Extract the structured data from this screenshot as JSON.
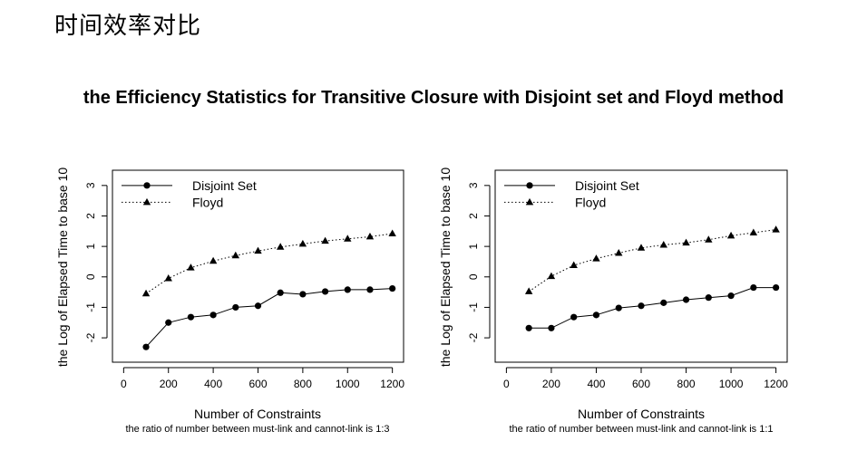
{
  "slide": {
    "title": "时间效率对比"
  },
  "figure": {
    "title": "the Efficiency Statistics for Transitive Closure with Disjoint set and Floyd method"
  },
  "chart_data": [
    {
      "type": "line",
      "xlabel": "Number of Constraints",
      "subtitle": "the ratio of number between must-link and cannot-link is 1:3",
      "ylabel": "the Log of Elapsed Time to base 10",
      "xlim": [
        -50,
        1250
      ],
      "ylim": [
        -2.8,
        3.5
      ],
      "xticks": [
        0,
        200,
        400,
        600,
        800,
        1000,
        1200
      ],
      "yticks": [
        -2,
        -1,
        0,
        1,
        2,
        3
      ],
      "legend_position": "top-left",
      "grid": false,
      "x": [
        100,
        200,
        300,
        400,
        500,
        600,
        700,
        800,
        900,
        1000,
        1100,
        1200
      ],
      "series": [
        {
          "name": "Disjoint Set",
          "line": "solid",
          "marker": "circle",
          "values": [
            -2.3,
            -1.5,
            -1.32,
            -1.25,
            -1.0,
            -0.95,
            -0.52,
            -0.57,
            -0.48,
            -0.42,
            -0.42,
            -0.38
          ]
        },
        {
          "name": "Floyd",
          "line": "dotted",
          "marker": "triangle",
          "values": [
            -0.55,
            -0.05,
            0.3,
            0.52,
            0.7,
            0.85,
            0.98,
            1.08,
            1.18,
            1.25,
            1.32,
            1.42
          ]
        }
      ]
    },
    {
      "type": "line",
      "xlabel": "Number of Constraints",
      "subtitle": "the ratio of number between must-link and cannot-link is 1:1",
      "ylabel": "the Log of Elapsed Time to base 10",
      "xlim": [
        -50,
        1250
      ],
      "ylim": [
        -2.8,
        3.5
      ],
      "xticks": [
        0,
        200,
        400,
        600,
        800,
        1000,
        1200
      ],
      "yticks": [
        -2,
        -1,
        0,
        1,
        2,
        3
      ],
      "legend_position": "top-left",
      "grid": false,
      "x": [
        100,
        200,
        300,
        400,
        500,
        600,
        700,
        800,
        900,
        1000,
        1100,
        1200
      ],
      "series": [
        {
          "name": "Disjoint Set",
          "line": "solid",
          "marker": "circle",
          "values": [
            -1.68,
            -1.68,
            -1.32,
            -1.25,
            -1.02,
            -0.95,
            -0.85,
            -0.75,
            -0.68,
            -0.62,
            -0.35,
            -0.35
          ]
        },
        {
          "name": "Floyd",
          "line": "dotted",
          "marker": "triangle",
          "values": [
            -0.48,
            0.02,
            0.38,
            0.6,
            0.78,
            0.95,
            1.05,
            1.12,
            1.22,
            1.35,
            1.45,
            1.55
          ]
        }
      ]
    }
  ]
}
